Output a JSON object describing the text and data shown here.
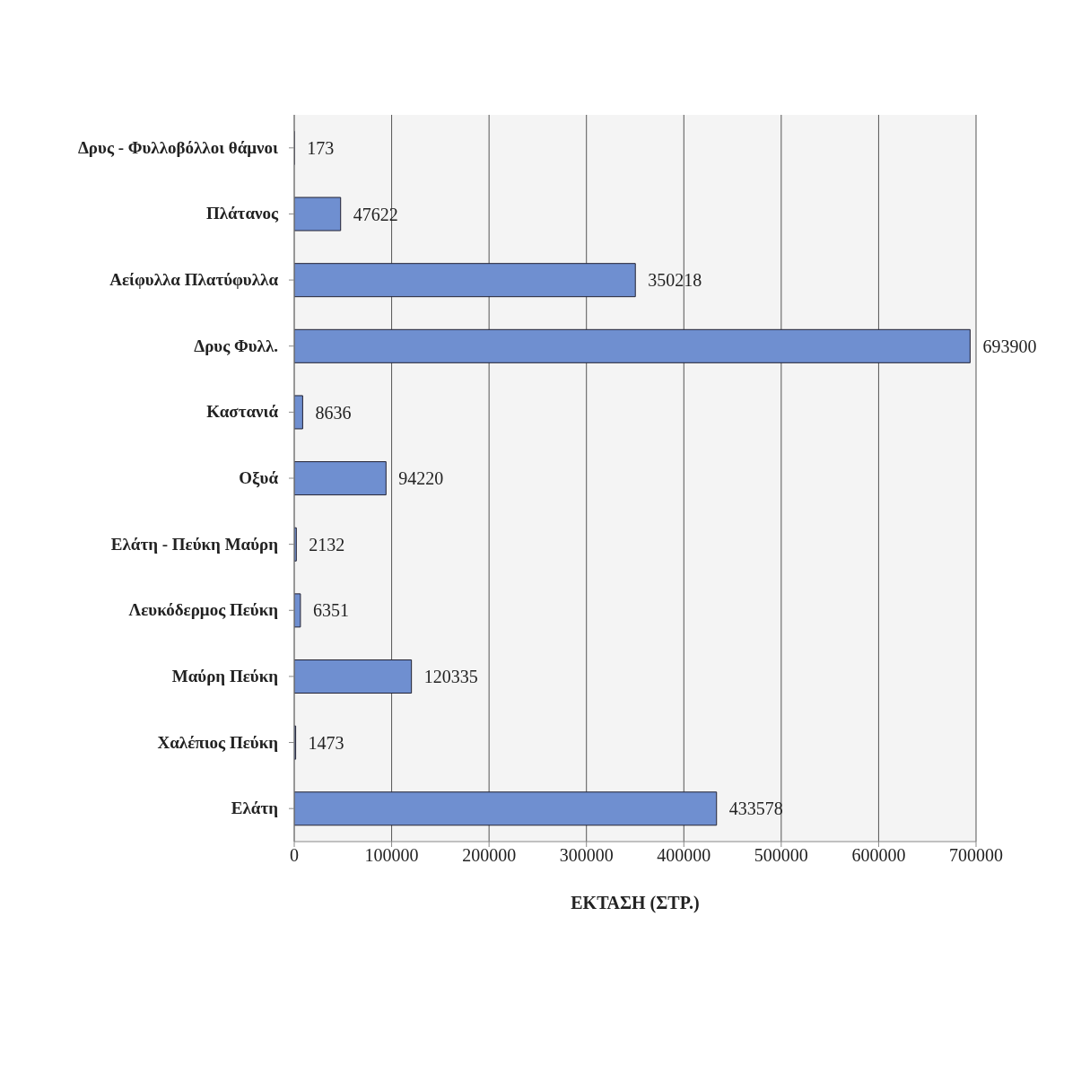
{
  "chart_data": {
    "type": "bar",
    "orientation": "horizontal",
    "xlabel": "ΕΚΤΑΣΗ (ΣΤΡ.)",
    "categories": [
      "Δρυς - Φυλλοβόλλοι θάμνοι",
      "Πλάτανος",
      "Αείφυλλα Πλατύφυλλα",
      "Δρυς Φυλλ.",
      "Καστανιά",
      "Οξυά",
      "Ελάτη - Πεύκη Μαύρη",
      "Λευκόδερμος Πεύκη",
      "Μαύρη Πεύκη",
      "Χαλέπιος Πεύκη",
      "Ελάτη"
    ],
    "values": [
      173,
      47622,
      350218,
      693900,
      8636,
      94220,
      2132,
      6351,
      120335,
      1473,
      433578
    ],
    "color": "#6f8fd0",
    "xlim": [
      0,
      700000
    ],
    "xticks": [
      0,
      100000,
      200000,
      300000,
      400000,
      500000,
      600000,
      700000
    ],
    "grid": "x",
    "data_labels": true
  }
}
